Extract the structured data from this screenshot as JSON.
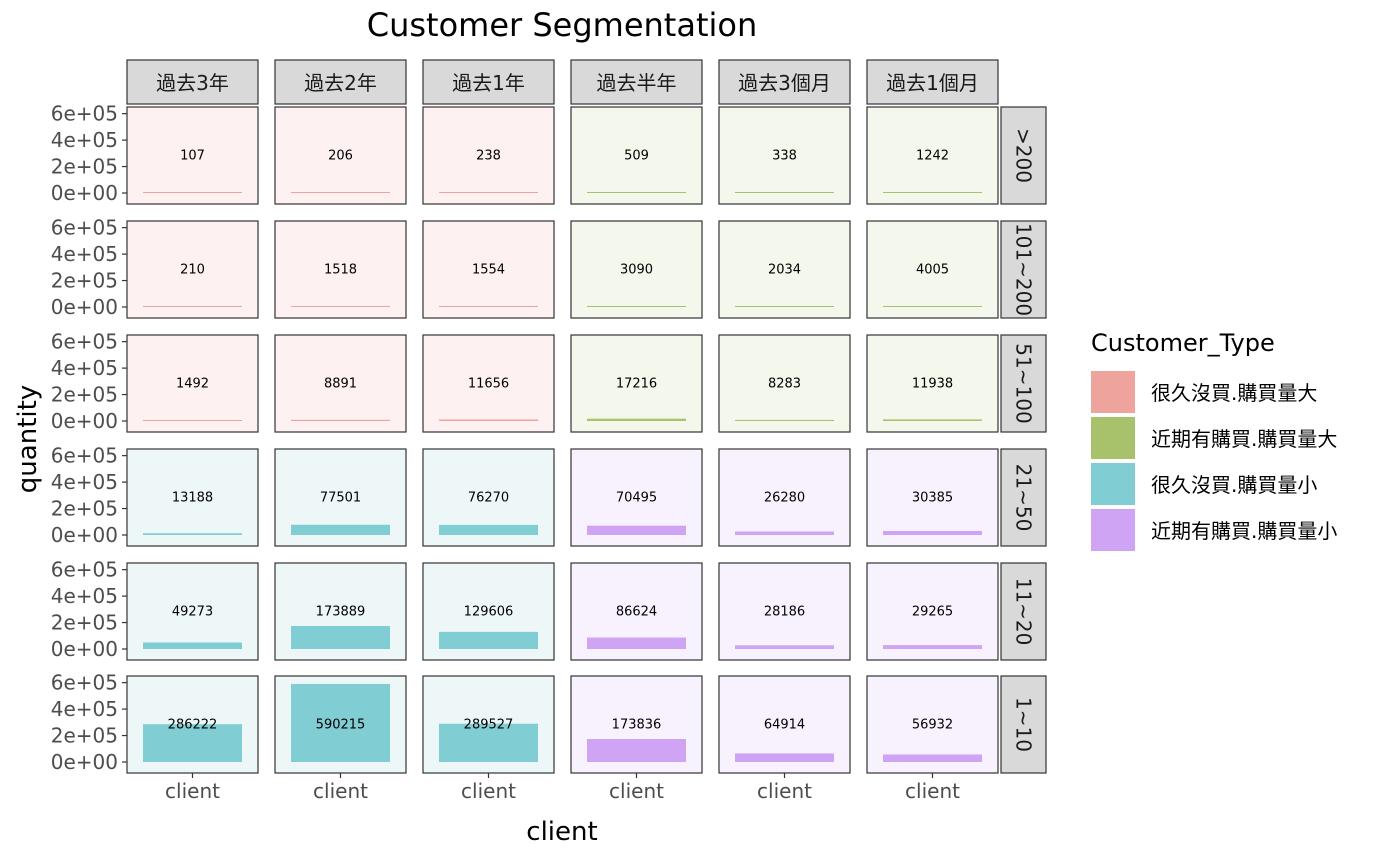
{
  "chart_data": {
    "type": "bar",
    "title": "Customer Segmentation",
    "xlabel": "client",
    "ylabel": "quantity",
    "x_tick_label": "client",
    "ylim": [
      0,
      620000
    ],
    "y_ticks": [
      0,
      200000,
      400000,
      600000
    ],
    "y_tick_labels": [
      "0e+00",
      "2e+05",
      "4e+05",
      "6e+05"
    ],
    "col_facets": [
      "過去3年",
      "過去2年",
      "過去1年",
      "過去半年",
      "過去3個月",
      "過去1個月"
    ],
    "row_facets": [
      ">200",
      "101~200",
      "51~100",
      "21~50",
      "11~20",
      "1~10"
    ],
    "values": [
      [
        107,
        206,
        238,
        509,
        338,
        1242
      ],
      [
        210,
        1518,
        1554,
        3090,
        2034,
        4005
      ],
      [
        1492,
        8891,
        11656,
        17216,
        8283,
        11938
      ],
      [
        13188,
        77501,
        76270,
        70495,
        26280,
        30385
      ],
      [
        49273,
        173889,
        129606,
        86624,
        28186,
        29265
      ],
      [
        286222,
        590215,
        289527,
        173836,
        64914,
        56932
      ]
    ],
    "types": [
      [
        "很久沒買.購買量大",
        "很久沒買.購買量大",
        "很久沒買.購買量大",
        "近期有購買.購買量大",
        "近期有購買.購買量大",
        "近期有購買.購買量大"
      ],
      [
        "很久沒買.購買量大",
        "很久沒買.購買量大",
        "很久沒買.購買量大",
        "近期有購買.購買量大",
        "近期有購買.購買量大",
        "近期有購買.購買量大"
      ],
      [
        "很久沒買.購買量大",
        "很久沒買.購買量大",
        "很久沒買.購買量大",
        "近期有購買.購買量大",
        "近期有購買.購買量大",
        "近期有購買.購買量大"
      ],
      [
        "很久沒買.購買量小",
        "很久沒買.購買量小",
        "很久沒買.購買量小",
        "近期有購買.購買量小",
        "近期有購買.購買量小",
        "近期有購買.購買量小"
      ],
      [
        "很久沒買.購買量小",
        "很久沒買.購買量小",
        "很久沒買.購買量小",
        "近期有購買.購買量小",
        "近期有購買.購買量小",
        "近期有購買.購買量小"
      ],
      [
        "很久沒買.購買量小",
        "很久沒買.購買量小",
        "很久沒買.購買量小",
        "近期有購買.購買量小",
        "近期有購買.購買量小",
        "近期有購買.購買量小"
      ]
    ],
    "legend": {
      "title": "Customer_Type",
      "position": "right",
      "items": [
        {
          "name": "很久沒買.購買量大",
          "color": "#eea39c",
          "panel_bg": "#fdf2f1"
        },
        {
          "name": "近期有購買.購買量大",
          "color": "#a7c26b",
          "panel_bg": "#f3f7ec"
        },
        {
          "name": "很久沒買.購買量小",
          "color": "#80ced3",
          "panel_bg": "#edf7f8"
        },
        {
          "name": "近期有購買.購買量小",
          "color": "#cfa4f5",
          "panel_bg": "#f8f2fe"
        }
      ]
    },
    "grid": false
  }
}
